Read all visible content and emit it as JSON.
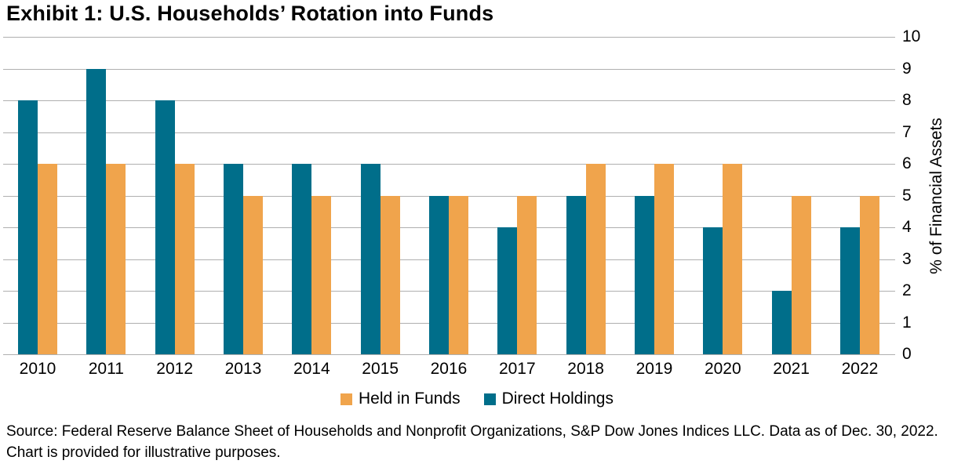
{
  "title": "Exhibit 1: U.S. Households’ Rotation into Funds",
  "source_note": "Source: Federal Reserve Balance Sheet of Households and Nonprofit Organizations, S&P Dow Jones Indices LLC. Data as of Dec. 30, 2022. Chart is provided for illustrative purposes.",
  "colors": {
    "direct_holdings": "#006E8A",
    "held_in_funds": "#F0A44C",
    "gridline": "#AFAFAF",
    "text": "#000000",
    "background": "#FFFFFF"
  },
  "chart_data": {
    "type": "bar",
    "title": "Exhibit 1: U.S. Households’ Rotation into Funds",
    "categories": [
      "2010",
      "2011",
      "2012",
      "2013",
      "2014",
      "2015",
      "2016",
      "2017",
      "2018",
      "2019",
      "2020",
      "2021",
      "2022"
    ],
    "series": [
      {
        "name": "Direct Holdings",
        "color": "#006E8A",
        "values": [
          8,
          9,
          8,
          6,
          6,
          6,
          5,
          4,
          5,
          5,
          4,
          2,
          4
        ]
      },
      {
        "name": "Held in Funds",
        "color": "#F0A44C",
        "values": [
          6,
          6,
          6,
          5,
          5,
          5,
          5,
          5,
          6,
          6,
          6,
          5,
          5
        ]
      }
    ],
    "legend": [
      {
        "label": "Held in Funds",
        "color": "#F0A44C"
      },
      {
        "label": "Direct Holdings",
        "color": "#006E8A"
      }
    ],
    "legend_position": "bottom-center",
    "xlabel": "",
    "ylabel": "% of Financial Assets",
    "ylim": [
      0,
      10
    ],
    "ytick_step": 1,
    "yticks": [
      0,
      1,
      2,
      3,
      4,
      5,
      6,
      7,
      8,
      9,
      10
    ],
    "grid": "horizontal",
    "y_axis_side": "right"
  }
}
